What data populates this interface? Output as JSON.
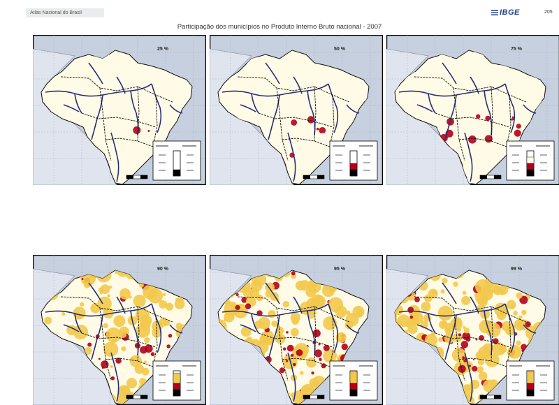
{
  "header": {
    "atlas_label": "Atlas Nacional do Brasil",
    "publisher_logo": "IBGE",
    "page_number": "205"
  },
  "title": "Participação dos municípios no Produto Interno Bruto nacional - 2007",
  "maps": [
    {
      "percent_label": "25 %",
      "level": 0.25,
      "colors": {
        "low": "#fffbe6",
        "mid": "#fffbe6",
        "high": "#b3001b"
      },
      "patch_density": 0.05
    },
    {
      "percent_label": "50 %",
      "level": 0.5,
      "colors": {
        "low": "#fffbe6",
        "mid": "#fffbe6",
        "high": "#b3001b"
      },
      "patch_density": 0.2
    },
    {
      "percent_label": "75 %",
      "level": 0.75,
      "colors": {
        "low": "#fffbe6",
        "mid": "#fffbe6",
        "high": "#b3001b"
      },
      "patch_density": 0.35
    },
    {
      "percent_label": "90 %",
      "level": 0.9,
      "colors": {
        "low": "#fffbe6",
        "mid": "#f2c94c",
        "high": "#b3001b"
      },
      "patch_density": 0.55
    },
    {
      "percent_label": "95 %",
      "level": 0.95,
      "colors": {
        "low": "#fffbe6",
        "mid": "#f2c94c",
        "high": "#b3001b"
      },
      "patch_density": 0.8
    },
    {
      "percent_label": "99 %",
      "level": 0.99,
      "colors": {
        "low": "#fffbe6",
        "mid": "#f2c94c",
        "high": "#b3001b"
      },
      "patch_density": 0.95
    }
  ],
  "colors": {
    "background_ocean": "#c7d0de",
    "neighbor_land": "#dfe4ee",
    "brazil_base": "#fffbe6",
    "river": "#24307e",
    "border": "#111111",
    "panel_frame": "#000000"
  }
}
